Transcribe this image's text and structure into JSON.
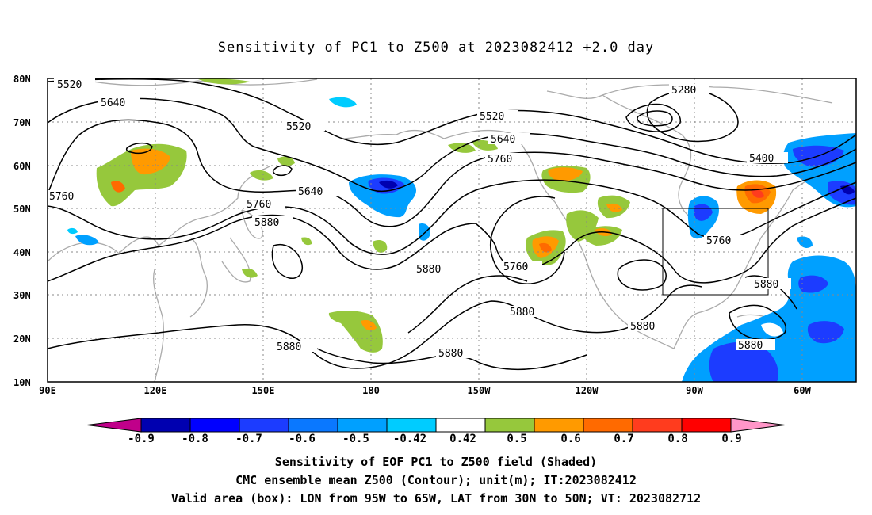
{
  "title": "Sensitivity of PC1 to Z500 at 2023082412 +2.0 day",
  "lat_labels": [
    "80N",
    "70N",
    "60N",
    "50N",
    "40N",
    "30N",
    "20N",
    "10N"
  ],
  "lon_labels": [
    "90E",
    "120E",
    "150E",
    "180",
    "150W",
    "120W",
    "90W",
    "60W"
  ],
  "contour_labels": [
    "5520",
    "5640",
    "5520",
    "5760",
    "5640",
    "5760",
    "5880",
    "5520",
    "5640",
    "5760",
    "5280",
    "5400",
    "5880",
    "5760",
    "5880",
    "5760",
    "5880",
    "5880",
    "5880",
    "5880",
    "5880"
  ],
  "colorbar": {
    "labels": [
      "-0.9",
      "-0.8",
      "-0.7",
      "-0.6",
      "-0.5",
      "-0.42",
      "0.42",
      "0.5",
      "0.6",
      "0.7",
      "0.8",
      "0.9"
    ],
    "colors": [
      "#c0008a",
      "#0000b0",
      "#0000ff",
      "#1c3cff",
      "#0a78ff",
      "#00a0ff",
      "#00ccff",
      "#ffffff",
      "#96c83c",
      "#ff9a00",
      "#ff6a00",
      "#ff3c1e",
      "#ff0000",
      "#ff96c8"
    ]
  },
  "caption": {
    "line1": "Sensitivity of EOF PC1 to Z500 field (Shaded)",
    "line2": "CMC ensemble mean Z500 (Contour); unit(m); IT:2023082412",
    "line3": "Valid area (box): LON from 95W to 65W, LAT from 30N to 50N; VT: 2023082712"
  }
}
